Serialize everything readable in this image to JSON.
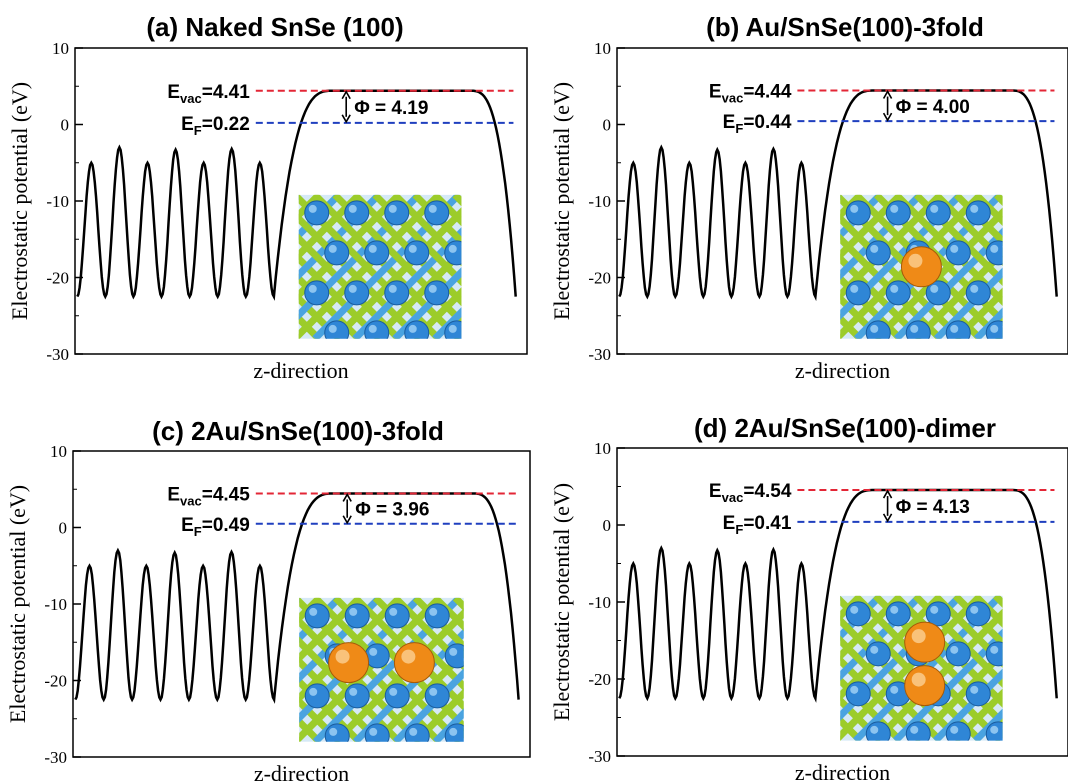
{
  "colors": {
    "curve": "#000000",
    "vacuum_line": "#e32636",
    "fermi_line": "#1f3fbf",
    "sn_atom": "#2f86d6",
    "se_bond": "#9ccc2a",
    "au_atom": "#ef8a17"
  },
  "chart_data": [
    {
      "type": "line",
      "title": "(a) Naked SnSe (100)",
      "xlabel": "z-direction",
      "ylabel": "Electrostatic potential (eV)",
      "ylim": [
        -30,
        10
      ],
      "yticks": [
        "10",
        "0",
        "-10",
        "-20",
        "-30"
      ],
      "grid": false,
      "annotations": {
        "evac": {
          "prefix": "E",
          "sub": "vac",
          "value": "=4.41",
          "y": 4.41
        },
        "ef": {
          "prefix": "E",
          "sub": "F",
          "value": "=0.22",
          "y": 0.22
        },
        "phi": "Φ = 4.19"
      },
      "curve": {
        "trough": -22.5,
        "peaks": [
          -5,
          -3,
          -5,
          -3.3,
          -5,
          -3.2,
          -5
        ],
        "plateau": 4.41
      },
      "inset": {
        "structure": "SnSe(100)",
        "adsorbate_icons": []
      }
    },
    {
      "type": "line",
      "title": "(b) Au/SnSe(100)-3fold",
      "xlabel": "z-direction",
      "ylabel": "Electrostatic potential (eV)",
      "ylim": [
        -30,
        10
      ],
      "yticks": [
        "10",
        "0",
        "-10",
        "-20",
        "-30"
      ],
      "grid": false,
      "annotations": {
        "evac": {
          "prefix": "E",
          "sub": "vac",
          "value": "=4.44",
          "y": 4.44
        },
        "ef": {
          "prefix": "E",
          "sub": "F",
          "value": "=0.44",
          "y": 0.44
        },
        "phi": "Φ = 4.00"
      },
      "curve": {
        "trough": -22.5,
        "peaks": [
          -5,
          -3,
          -5,
          -3.3,
          -5,
          -3.2,
          -5
        ],
        "plateau": 4.44
      },
      "inset": {
        "structure": "Au/SnSe(100)-3fold",
        "adsorbate_icons": [
          "gold-atom"
        ]
      }
    },
    {
      "type": "line",
      "title": "(c) 2Au/SnSe(100)-3fold",
      "xlabel": "z-direction",
      "ylabel": "Electrostatic potential (eV)",
      "ylim": [
        -30,
        10
      ],
      "yticks": [
        "10",
        "0",
        "-10",
        "-20",
        "-30"
      ],
      "grid": false,
      "annotations": {
        "evac": {
          "prefix": "E",
          "sub": "vac",
          "value": "=4.45",
          "y": 4.45
        },
        "ef": {
          "prefix": "E",
          "sub": "F",
          "value": "=0.49",
          "y": 0.49
        },
        "phi": "Φ = 3.96"
      },
      "curve": {
        "trough": -22.5,
        "peaks": [
          -5,
          -3,
          -5,
          -3.3,
          -5,
          -3.2,
          -5
        ],
        "plateau": 4.45
      },
      "inset": {
        "structure": "2Au/SnSe(100)-3fold",
        "adsorbate_icons": [
          "gold-atom",
          "gold-atom"
        ]
      }
    },
    {
      "type": "line",
      "title": "(d) 2Au/SnSe(100)-dimer",
      "xlabel": "z-direction",
      "ylabel": "Electrostatic potential (eV)",
      "ylim": [
        -30,
        10
      ],
      "yticks": [
        "10",
        "0",
        "-10",
        "-20",
        "-30"
      ],
      "grid": false,
      "annotations": {
        "evac": {
          "prefix": "E",
          "sub": "vac",
          "value": "=4.54",
          "y": 4.54
        },
        "ef": {
          "prefix": "E",
          "sub": "F",
          "value": "=0.41",
          "y": 0.41
        },
        "phi": "Φ = 4.13"
      },
      "curve": {
        "trough": -22.5,
        "peaks": [
          -5,
          -3,
          -5,
          -3.3,
          -5,
          -3.2,
          -5
        ],
        "plateau": 4.54
      },
      "inset": {
        "structure": "2Au/SnSe(100)-dimer",
        "adsorbate_icons": [
          "gold-atom",
          "gold-atom"
        ]
      }
    }
  ]
}
